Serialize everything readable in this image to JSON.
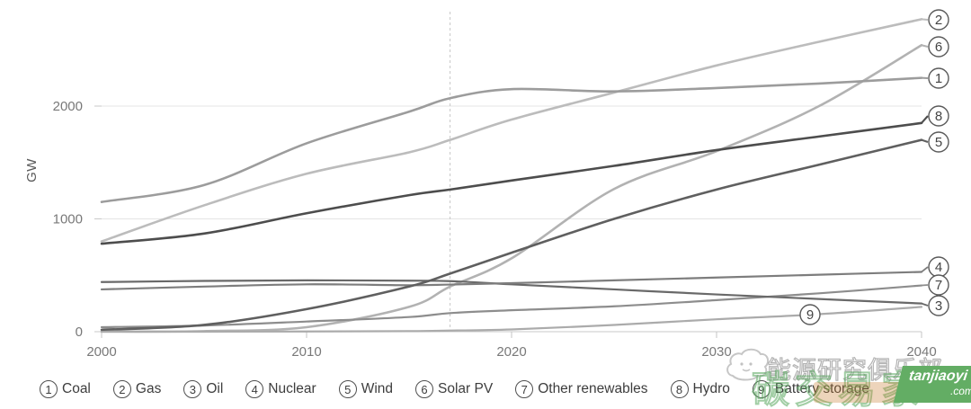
{
  "chart_data": {
    "type": "line",
    "title": "",
    "ylabel": "GW",
    "x": [
      2000,
      2005,
      2010,
      2015,
      2017,
      2020,
      2025,
      2030,
      2035,
      2040
    ],
    "x_ticks": [
      "2000",
      "2010",
      "2020",
      "2030",
      "2040"
    ],
    "y_ticks": [
      "0",
      "1000",
      "2000"
    ],
    "xlim": [
      2000,
      2040
    ],
    "ylim": [
      0,
      2870
    ],
    "grid": "horizontal",
    "projection_divider_year": 2017,
    "legend_position": "bottom",
    "series": [
      {
        "num": "1",
        "name": "Coal",
        "color": "#9c9c9c",
        "width": 2.6,
        "values": [
          1150,
          1300,
          1670,
          1950,
          2070,
          2150,
          2130,
          2160,
          2200,
          2250
        ],
        "label_y": 87
      },
      {
        "num": "2",
        "name": "Gas",
        "color": "#bcbcbc",
        "width": 2.6,
        "values": [
          800,
          1120,
          1400,
          1590,
          1700,
          1880,
          2120,
          2360,
          2570,
          2770
        ],
        "label_y": 22
      },
      {
        "num": "3",
        "name": "Oil",
        "color": "#696969",
        "width": 2.2,
        "values": [
          440,
          450,
          455,
          452,
          448,
          420,
          375,
          330,
          290,
          250
        ],
        "label_y": 340
      },
      {
        "num": "4",
        "name": "Nuclear",
        "color": "#7d7d7d",
        "width": 2.2,
        "values": [
          375,
          400,
          420,
          412,
          418,
          430,
          455,
          480,
          505,
          530
        ],
        "label_y": 297
      },
      {
        "num": "5",
        "name": "Wind",
        "color": "#5f5f5f",
        "width": 2.6,
        "values": [
          17,
          60,
          200,
          400,
          515,
          700,
          1000,
          1260,
          1480,
          1700
        ],
        "label_y": 158
      },
      {
        "num": "6",
        "name": "Solar PV",
        "color": "#b2b2b2",
        "width": 2.6,
        "values": [
          1,
          5,
          40,
          220,
          400,
          650,
          1265,
          1600,
          2000,
          2540
        ],
        "label_y": 52
      },
      {
        "num": "7",
        "name": "Other renewables",
        "color": "#8d8d8d",
        "width": 2.2,
        "values": [
          40,
          55,
          90,
          130,
          165,
          190,
          225,
          280,
          340,
          410
        ],
        "label_y": 317
      },
      {
        "num": "8",
        "name": "Hydro",
        "color": "#4d4d4d",
        "width": 2.6,
        "values": [
          780,
          870,
          1050,
          1210,
          1260,
          1340,
          1470,
          1610,
          1730,
          1850
        ],
        "label_y": 129
      },
      {
        "num": "9",
        "name": "Battery storage",
        "color": "#ababab",
        "width": 2.2,
        "values": [
          0,
          0,
          2,
          5,
          10,
          20,
          60,
          110,
          155,
          220
        ],
        "label_inline": true,
        "label_x": 901,
        "label_y": 350
      }
    ]
  },
  "legend": {
    "items": [
      {
        "num": "1",
        "label": "Coal"
      },
      {
        "num": "2",
        "label": "Gas"
      },
      {
        "num": "3",
        "label": "Oil"
      },
      {
        "num": "4",
        "label": "Nuclear"
      },
      {
        "num": "5",
        "label": "Wind"
      },
      {
        "num": "6",
        "label": "Solar PV"
      },
      {
        "num": "7",
        "label": "Other renewables"
      },
      {
        "num": "8",
        "label": "Hydro"
      },
      {
        "num": "9",
        "label": "Battery storage"
      }
    ]
  },
  "watermark": {
    "club_text": "能源研究俱乐部",
    "green_text": "碳交易家",
    "site_name": "tanjiaoyi",
    "site_tld": ".com"
  }
}
